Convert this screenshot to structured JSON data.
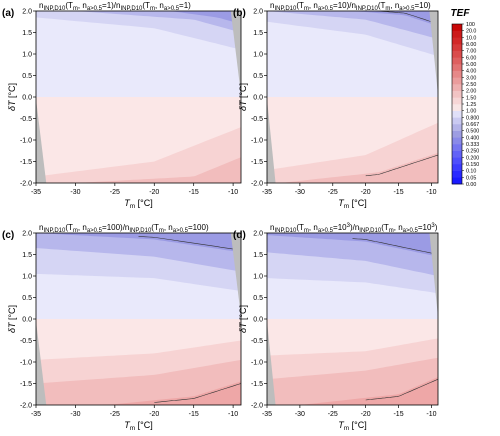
{
  "colorbar": {
    "title": "TEF",
    "ticks": [
      "0.00",
      "0.05",
      "0.10",
      "0.150",
      "0.200",
      "0.250",
      "0.333",
      "0.400",
      "0.500",
      "0.667",
      "0.800",
      "1.00",
      "1.25",
      "1.50",
      "2.00",
      "2.50",
      "3.00",
      "4.00",
      "5.00",
      "6.00",
      "7.00",
      "8.00",
      "10.0",
      "20.0",
      "100"
    ],
    "colors": [
      "#1a1aff",
      "#2a2aff",
      "#3c3cfe",
      "#4f4ffb",
      "#6262f6",
      "#7676f0",
      "#8a8ae8",
      "#9d9de2",
      "#b4b4e8",
      "#cacaf1",
      "#e0e0f8",
      "#f8e6e6",
      "#f6d6d6",
      "#f2c4c4",
      "#eeb0b0",
      "#ea9c9c",
      "#e68888",
      "#e27474",
      "#de6060",
      "#da4c4c",
      "#d63a3a",
      "#d22828",
      "#cc1a1a",
      "#c80808"
    ]
  },
  "chart_data": [
    {
      "type": "heatmap",
      "panel": "(a)",
      "title": "n_INP,D10(T_m, n_a>0.5=1)/n_INP,D10(T_m, n_a>0.5=1)",
      "xlabel": "T_m [°C]",
      "ylabel": "δT [°C]",
      "xlim": [
        -35,
        -9
      ],
      "ylim": [
        -2.0,
        2.0
      ],
      "xticks": [
        "-35",
        "-30",
        "-25",
        "-20",
        "-15",
        "-10"
      ],
      "yticks": [
        "-2.0",
        "-1.5",
        "-1.0",
        "-0.5",
        "0.0",
        "0.5",
        "1.0",
        "1.5",
        "2.0"
      ],
      "bands_top": [
        {
          "level": "0.800-1.00",
          "y_at_x": [
            [
              -35,
              0.0
            ],
            [
              -9,
              0.0
            ]
          ]
        },
        {
          "level": "0.667-0.800",
          "y_at_x": [
            [
              -35,
              1.85
            ],
            [
              -20,
              1.6
            ],
            [
              -9,
              1.1
            ]
          ]
        },
        {
          "level": "0.500-0.667",
          "y_at_x": [
            [
              -30,
              2.0
            ],
            [
              -15,
              1.8
            ],
            [
              -9,
              1.5
            ]
          ]
        },
        {
          "level": "0.400-0.500",
          "y_at_x": [
            [
              -18,
              2.0
            ],
            [
              -12,
              1.85
            ],
            [
              -9,
              1.7
            ]
          ]
        }
      ],
      "bands_bottom": [
        {
          "level": "1.00-1.25",
          "y_at_x": [
            [
              -35,
              0.0
            ],
            [
              -9,
              0.0
            ]
          ]
        },
        {
          "level": "1.25-1.50",
          "y_at_x": [
            [
              -35,
              -1.85
            ],
            [
              -20,
              -1.5
            ],
            [
              -9,
              -0.7
            ]
          ]
        },
        {
          "level": "1.50-2.00",
          "y_at_x": [
            [
              -30,
              -2.0
            ],
            [
              -15,
              -1.85
            ],
            [
              -9,
              -1.4
            ]
          ]
        }
      ],
      "title_parts": {
        "p1": "n",
        "s1": "INP,D10",
        "p2": "(T",
        "s2": "m",
        "p3": ", n",
        "s3": "a>0.5",
        "p4": "=1)/n",
        "s4": "INP,D10",
        "p5": "(T",
        "s5": "m",
        "p6": ", n",
        "s6": "a>0.5",
        "p7": "=1)"
      }
    },
    {
      "type": "heatmap",
      "panel": "(b)",
      "title": "n_INP,D10(T_m, n_a>0.5=10)/n_INP,D10(T_m, n_a>0.5=10)",
      "xlabel": "T_m [°C]",
      "ylabel": "δT [°C]",
      "xlim": [
        -35,
        -9
      ],
      "ylim": [
        -2.0,
        2.0
      ],
      "xticks": [
        "-35",
        "-30",
        "-25",
        "-20",
        "-15",
        "-10"
      ],
      "yticks": [
        "-2.0",
        "-1.5",
        "-1.0",
        "-0.5",
        "0.0",
        "0.5",
        "1.0",
        "1.5",
        "2.0"
      ],
      "bands_top": [
        {
          "level": "0.800-1.00",
          "y_at_x": [
            [
              -35,
              0.0
            ],
            [
              -9,
              0.0
            ]
          ]
        },
        {
          "level": "0.667-0.800",
          "y_at_x": [
            [
              -35,
              1.75
            ],
            [
              -20,
              1.45
            ],
            [
              -9,
              0.95
            ]
          ]
        },
        {
          "level": "0.500-0.667",
          "y_at_x": [
            [
              -35,
              2.0
            ],
            [
              -20,
              1.8
            ],
            [
              -9,
              1.35
            ]
          ]
        },
        {
          "level": "0.400-0.500",
          "y_at_x": [
            [
              -22,
              2.0
            ],
            [
              -14,
              1.9
            ],
            [
              -9,
              1.65
            ]
          ]
        }
      ],
      "bands_bottom": [
        {
          "level": "1.00-1.25",
          "y_at_x": [
            [
              -35,
              0.0
            ],
            [
              -9,
              0.0
            ]
          ]
        },
        {
          "level": "1.25-1.50",
          "y_at_x": [
            [
              -35,
              -1.7
            ],
            [
              -20,
              -1.35
            ],
            [
              -9,
              -0.6
            ]
          ]
        },
        {
          "level": "1.50-2.00",
          "y_at_x": [
            [
              -33,
              -2.0
            ],
            [
              -18,
              -1.75
            ],
            [
              -9,
              -1.3
            ]
          ]
        }
      ],
      "title_parts": {
        "p1": "n",
        "s1": "INP,D10",
        "p2": "(T",
        "s2": "m",
        "p3": ", n",
        "s3": "a>0.5",
        "p4": "=10)/n",
        "s4": "INP,D10",
        "p5": "(T",
        "s5": "m",
        "p6": ", n",
        "s6": "a>0.5",
        "p7": "=10)"
      }
    },
    {
      "type": "heatmap",
      "panel": "(c)",
      "title": "n_INP,D10(T_m, n_a>0.5=100)/n_INP,D10(T_m, n_a>0.5=100)",
      "xlabel": "T_m [°C]",
      "ylabel": "δT [°C]",
      "xlim": [
        -35,
        -9
      ],
      "ylim": [
        -2.0,
        2.0
      ],
      "xticks": [
        "-35",
        "-30",
        "-25",
        "-20",
        "-15",
        "-10"
      ],
      "yticks": [
        "-2.0",
        "-1.5",
        "-1.0",
        "-0.5",
        "0.0",
        "0.5",
        "1.0",
        "1.5",
        "2.0"
      ],
      "bands_top": [
        {
          "level": "0.800-1.00",
          "y_at_x": [
            [
              -35,
              0.0
            ],
            [
              -9,
              0.0
            ]
          ]
        },
        {
          "level": "0.667-0.800",
          "y_at_x": [
            [
              -35,
              1.05
            ],
            [
              -20,
              0.95
            ],
            [
              -9,
              0.65
            ]
          ]
        },
        {
          "level": "0.500-0.667",
          "y_at_x": [
            [
              -35,
              1.65
            ],
            [
              -20,
              1.45
            ],
            [
              -9,
              1.1
            ]
          ]
        },
        {
          "level": "0.400-0.500",
          "y_at_x": [
            [
              -35,
              2.0
            ],
            [
              -20,
              1.85
            ],
            [
              -9,
              1.55
            ]
          ]
        }
      ],
      "bands_bottom": [
        {
          "level": "1.00-1.25",
          "y_at_x": [
            [
              -35,
              0.0
            ],
            [
              -9,
              0.0
            ]
          ]
        },
        {
          "level": "1.25-1.50",
          "y_at_x": [
            [
              -35,
              -0.95
            ],
            [
              -20,
              -0.8
            ],
            [
              -9,
              -0.5
            ]
          ]
        },
        {
          "level": "1.50-2.00",
          "y_at_x": [
            [
              -35,
              -1.5
            ],
            [
              -20,
              -1.3
            ],
            [
              -9,
              -0.95
            ]
          ]
        },
        {
          "level": "2.00-2.50",
          "y_at_x": [
            [
              -26,
              -2.0
            ],
            [
              -15,
              -1.8
            ],
            [
              -9,
              -1.45
            ]
          ]
        }
      ],
      "title_parts": {
        "p1": "n",
        "s1": "INP,D10",
        "p2": "(T",
        "s2": "m",
        "p3": ", n",
        "s3": "a>0.5",
        "p4": "=100)/n",
        "s4": "INP,D10",
        "p5": "(T",
        "s5": "m",
        "p6": ", n",
        "s6": "a>0.5",
        "p7": "=100)"
      }
    },
    {
      "type": "heatmap",
      "panel": "(d)",
      "title": "n_INP,D10(T_m, n_a>0.5=10^3)/n_INP,D10(T_m, n_a>0.5=10^3)",
      "xlabel": "T_m [°C]",
      "ylabel": "δT [°C]",
      "xlim": [
        -35,
        -9
      ],
      "ylim": [
        -2.0,
        2.0
      ],
      "xticks": [
        "-35",
        "-30",
        "-25",
        "-20",
        "-15",
        "-10"
      ],
      "yticks": [
        "-2.0",
        "-1.5",
        "-1.0",
        "-0.5",
        "0.0",
        "0.5",
        "1.0",
        "1.5",
        "2.0"
      ],
      "bands_top": [
        {
          "level": "0.800-1.00",
          "y_at_x": [
            [
              -35,
              0.0
            ],
            [
              -9,
              0.0
            ]
          ]
        },
        {
          "level": "0.667-0.800",
          "y_at_x": [
            [
              -35,
              0.95
            ],
            [
              -20,
              0.85
            ],
            [
              -9,
              0.6
            ]
          ]
        },
        {
          "level": "0.500-0.667",
          "y_at_x": [
            [
              -35,
              1.55
            ],
            [
              -20,
              1.35
            ],
            [
              -9,
              1.0
            ]
          ]
        },
        {
          "level": "0.400-0.500",
          "y_at_x": [
            [
              -35,
              1.95
            ],
            [
              -20,
              1.8
            ],
            [
              -9,
              1.45
            ]
          ]
        }
      ],
      "bands_bottom": [
        {
          "level": "1.00-1.25",
          "y_at_x": [
            [
              -35,
              0.0
            ],
            [
              -9,
              0.0
            ]
          ]
        },
        {
          "level": "1.25-1.50",
          "y_at_x": [
            [
              -35,
              -0.85
            ],
            [
              -20,
              -0.75
            ],
            [
              -9,
              -0.45
            ]
          ]
        },
        {
          "level": "1.50-2.00",
          "y_at_x": [
            [
              -35,
              -1.4
            ],
            [
              -20,
              -1.2
            ],
            [
              -9,
              -0.9
            ]
          ]
        },
        {
          "level": "2.00-2.50",
          "y_at_x": [
            [
              -30,
              -2.0
            ],
            [
              -15,
              -1.75
            ],
            [
              -9,
              -1.35
            ]
          ]
        }
      ],
      "title_parts": {
        "p1": "n",
        "s1": "INP,D10",
        "p2": "(T",
        "s2": "m",
        "p3": ", n",
        "s3": "a>0.5",
        "p4": "=10",
        "s4": "INP,D10",
        "p5": "(T",
        "s5": "m",
        "p6": ", n",
        "s6": "a>0.5",
        "p7": "=10",
        "sup": "3"
      }
    }
  ]
}
